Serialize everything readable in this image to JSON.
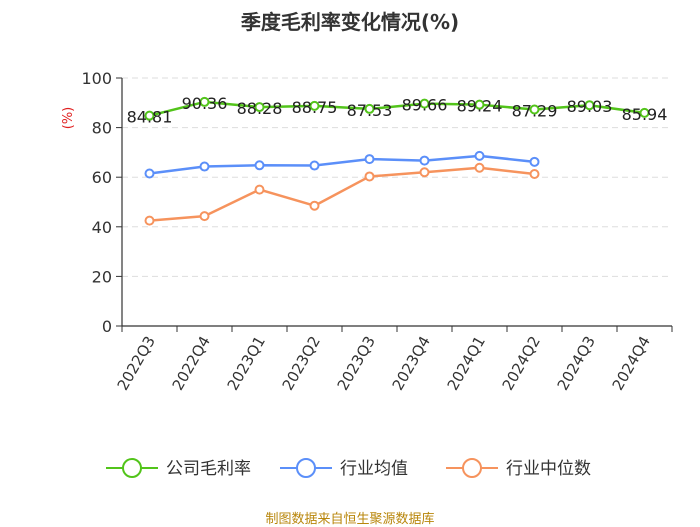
{
  "title": "季度毛利率变化情况(%)",
  "source": "制图数据来自恒生聚源数据库",
  "chart_data": {
    "type": "line",
    "title": "季度毛利率变化情况(%)",
    "ylabel": "(%)",
    "ylim": [
      0,
      100
    ],
    "yticks": [
      0,
      20,
      40,
      60,
      80,
      100
    ],
    "grid": true,
    "legend_position": "bottom",
    "categories": [
      "2022Q3",
      "2022Q4",
      "2023Q1",
      "2023Q2",
      "2023Q3",
      "2023Q4",
      "2024Q1",
      "2024Q2",
      "2024Q3",
      "2024Q4"
    ],
    "series": [
      {
        "name": "公司毛利率",
        "color": "#52c41a",
        "values": [
          84.81,
          90.36,
          88.28,
          88.75,
          87.53,
          89.66,
          89.24,
          87.29,
          89.03,
          85.94
        ],
        "labels": [
          "84.81",
          "90.36",
          "88.28",
          "88.75",
          "87.53",
          "89.66",
          "89.24",
          "87.29",
          "89.03",
          "85.94"
        ]
      },
      {
        "name": "行业均值",
        "color": "#5b8ff9",
        "values": [
          61.5,
          64.3,
          64.8,
          64.7,
          67.3,
          66.7,
          68.6,
          66.2,
          null,
          null
        ]
      },
      {
        "name": "行业中位数",
        "color": "#f6935d",
        "values": [
          42.5,
          44.3,
          55.0,
          48.5,
          60.3,
          62.0,
          63.8,
          61.3,
          null,
          null
        ]
      }
    ]
  }
}
